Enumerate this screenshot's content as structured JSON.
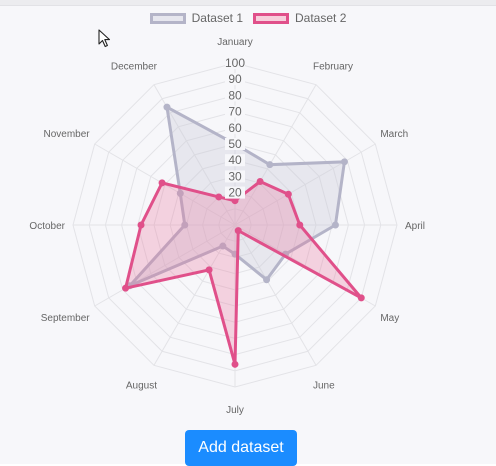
{
  "legend": [
    {
      "label": "Dataset 1",
      "fill": "#e6e6ee",
      "stroke": "#b4b4c8"
    },
    {
      "label": "Dataset 2",
      "fill": "#f7cfdc",
      "stroke": "#e0508a"
    }
  ],
  "add_button": {
    "label": "Add dataset"
  },
  "chart_data": {
    "type": "radar",
    "categories": [
      "January",
      "February",
      "March",
      "April",
      "May",
      "June",
      "July",
      "August",
      "September",
      "October",
      "November",
      "December"
    ],
    "scale": {
      "min": 0,
      "max": 100,
      "step": 10,
      "tick_labels": [
        "20",
        "30",
        "40",
        "50",
        "60",
        "70",
        "80",
        "90",
        "100"
      ]
    },
    "grid": true,
    "legend_position": "top",
    "series": [
      {
        "name": "Dataset 1",
        "values": [
          50,
          43,
          78,
          62,
          36,
          39,
          18,
          15,
          75,
          31,
          39,
          84
        ],
        "color": "#b4b4c8",
        "fill": "rgba(200,200,214,0.35)"
      },
      {
        "name": "Dataset 2",
        "values": [
          15,
          31,
          38,
          40,
          90,
          4,
          86,
          32,
          78,
          58,
          52,
          20
        ],
        "color": "#e0508a",
        "fill": "rgba(232,110,155,0.28)"
      }
    ]
  }
}
